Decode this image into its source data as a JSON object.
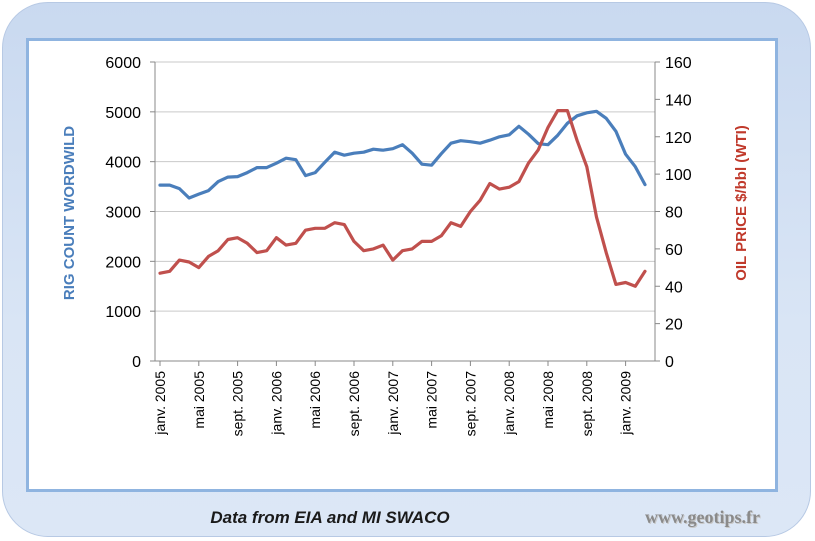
{
  "footer": {
    "source": "Data from EIA and MI SWACO",
    "site": "www.geotips.fr"
  },
  "chart_data": {
    "type": "line",
    "y_left": {
      "label": "RIG COUNT WORDWILD",
      "range": [
        0,
        6000
      ],
      "ticks": [
        "0",
        "1000",
        "2000",
        "3000",
        "4000",
        "5000",
        "6000"
      ]
    },
    "y_right": {
      "label": "OIL PRICE $/bbl (WTI)",
      "range": [
        0,
        160
      ],
      "ticks": [
        "0",
        "20",
        "40",
        "60",
        "80",
        "100",
        "120",
        "140",
        "160"
      ]
    },
    "x_tick_labels": [
      "janv. 2005",
      "mai 2005",
      "sept. 2005",
      "janv. 2006",
      "mai 2006",
      "sept. 2006",
      "janv. 2007",
      "mai 2007",
      "sept. 2007",
      "janv. 2008",
      "mai 2008",
      "sept. 2008",
      "janv. 2009"
    ],
    "grid": "horizontal",
    "colors": {
      "rig": "#4a7ebb",
      "oil": "#c0504d",
      "grid": "#c9c9c9"
    },
    "series": [
      {
        "axis": "left",
        "color": "#4a7ebb",
        "values": [
          3530,
          3530,
          3460,
          3270,
          3350,
          3420,
          3600,
          3690,
          3700,
          3780,
          3880,
          3880,
          3970,
          4070,
          4040,
          3720,
          3780,
          3990,
          4190,
          4130,
          4170,
          4190,
          4250,
          4230,
          4260,
          4340,
          4170,
          3950,
          3930,
          4160,
          4370,
          4420,
          4400,
          4370,
          4430,
          4500,
          4540,
          4710,
          4550,
          4360,
          4340,
          4530,
          4770,
          4920,
          4980,
          5010,
          4870,
          4610,
          4150,
          3900,
          3540
        ]
      },
      {
        "axis": "right",
        "color": "#c0504d",
        "values": [
          47,
          48,
          54,
          53,
          50,
          56,
          59,
          65,
          66,
          63,
          58,
          59,
          66,
          62,
          63,
          70,
          71,
          71,
          74,
          73,
          64,
          59,
          60,
          62,
          54,
          59,
          60,
          64,
          64,
          67,
          74,
          72,
          80,
          86,
          95,
          92,
          93,
          96,
          106,
          113,
          125,
          134,
          134,
          118,
          104,
          77,
          58,
          41,
          42,
          40,
          48
        ]
      }
    ]
  }
}
